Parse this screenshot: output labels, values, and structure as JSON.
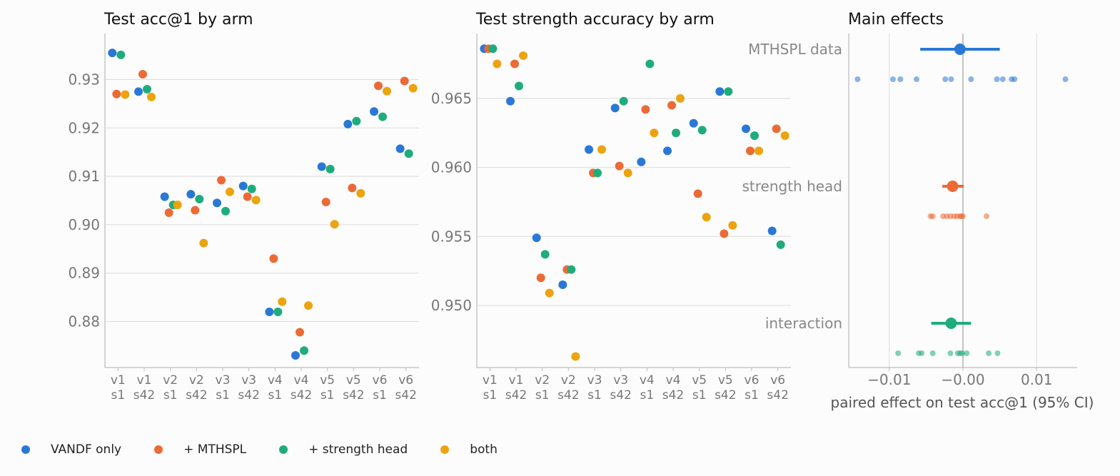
{
  "colors": {
    "VANDF only": "#2a78d6",
    "+ MTHSPL": "#ec6a35",
    "+ strength head": "#1fac7c",
    "both": "#eda30e"
  },
  "legend": [
    "VANDF only",
    "+ MTHSPL",
    "+ strength head",
    "both"
  ],
  "chart_data": [
    {
      "type": "scatter",
      "title": "Test acc@1 by arm",
      "categories": [
        "v1\ns1",
        "v1\ns42",
        "v2\ns1",
        "v2\ns42",
        "v3\ns1",
        "v3\ns42",
        "v4\ns1",
        "v4\ns42",
        "v5\ns1",
        "v5\ns42",
        "v6\ns1",
        "v6\ns42"
      ],
      "ylim": [
        0.8705,
        0.9395
      ],
      "yticks": [
        0.88,
        0.89,
        0.9,
        0.91,
        0.92,
        0.93
      ],
      "ytick_labels": [
        "0.88",
        "0.89",
        "0.90",
        "0.91",
        "0.92",
        "0.93"
      ],
      "grid": "horizontal",
      "series": [
        {
          "name": "VANDF only",
          "values": [
            0.9355,
            0.9275,
            0.9058,
            0.9063,
            0.9045,
            0.908,
            0.882,
            0.873,
            0.912,
            0.9208,
            0.9234,
            0.9157
          ]
        },
        {
          "name": "+ MTHSPL",
          "values": [
            0.927,
            0.9311,
            0.9025,
            0.903,
            0.9092,
            0.9058,
            0.893,
            0.8778,
            0.9047,
            0.9076,
            0.9287,
            0.9297
          ]
        },
        {
          "name": "+ strength head",
          "values": [
            0.9351,
            0.928,
            0.9041,
            0.9053,
            0.9028,
            0.9074,
            0.882,
            0.874,
            0.9115,
            0.9214,
            0.9223,
            0.9147
          ]
        },
        {
          "name": "both",
          "values": [
            0.9269,
            0.9264,
            0.9041,
            0.8962,
            0.9068,
            0.9051,
            0.8841,
            0.8833,
            0.9001,
            0.9065,
            0.9276,
            0.9282
          ]
        }
      ]
    },
    {
      "type": "scatter",
      "title": "Test strength accuracy by arm",
      "categories": [
        "v1\ns1",
        "v1\ns42",
        "v2\ns1",
        "v2\ns42",
        "v3\ns1",
        "v3\ns42",
        "v4\ns1",
        "v4\ns42",
        "v5\ns1",
        "v5\ns42",
        "v6\ns1",
        "v6\ns42"
      ],
      "ylim": [
        0.9455,
        0.9697
      ],
      "yticks": [
        0.95,
        0.955,
        0.96,
        0.965
      ],
      "ytick_labels": [
        "0.950",
        "0.955",
        "0.960",
        "0.965"
      ],
      "grid": "horizontal",
      "series": [
        {
          "name": "VANDF only",
          "values": [
            0.9686,
            0.9648,
            0.9549,
            0.9515,
            0.9613,
            0.9643,
            0.9604,
            0.9612,
            0.9632,
            0.9655,
            0.9628,
            0.9554
          ]
        },
        {
          "name": "+ MTHSPL",
          "values": [
            0.9686,
            0.9675,
            0.952,
            0.9526,
            0.9596,
            0.9601,
            0.9642,
            0.9645,
            0.9581,
            0.9552,
            0.9612,
            0.9628
          ]
        },
        {
          "name": "+ strength head",
          "values": [
            0.9686,
            0.9659,
            0.9537,
            0.9526,
            0.9596,
            0.9648,
            0.9675,
            0.9625,
            0.9627,
            0.9655,
            0.9623,
            0.9544
          ]
        },
        {
          "name": "both",
          "values": [
            0.9675,
            0.9681,
            0.9509,
            0.9463,
            0.9613,
            0.9596,
            0.9625,
            0.965,
            0.9564,
            0.9558,
            0.9612,
            0.9623
          ]
        }
      ]
    },
    {
      "type": "scatter",
      "title": "Main effects",
      "xlabel": "paired effect on test acc@1 (95% CI)",
      "xlim": [
        -0.0155,
        0.0155
      ],
      "xticks": [
        -0.01,
        0.0,
        0.01
      ],
      "xtick_labels": [
        "−0.01",
        "−0.00",
        "0.01"
      ],
      "effects": [
        {
          "label": "MTHSPL data",
          "color": "#2a78d6",
          "mean": -0.0004,
          "ci": [
            -0.0058,
            0.005
          ],
          "points": [
            -0.0143,
            -0.0095,
            -0.0085,
            -0.0063,
            -0.0024,
            -0.0016,
            0.0011,
            0.0046,
            0.0054,
            0.0066,
            0.007,
            0.0139
          ]
        },
        {
          "label": "strength head",
          "color": "#ec6a35",
          "mean": -0.0014,
          "ci": [
            -0.0028,
            0.0001
          ],
          "points": [
            -0.0044,
            -0.0041,
            -0.0027,
            -0.0022,
            -0.0017,
            -0.0012,
            -0.0008,
            -0.0004,
            -0.0002,
            0.0,
            0.0032
          ]
        },
        {
          "label": "interaction",
          "color": "#1fac7c",
          "mean": -0.0016,
          "ci": [
            -0.0043,
            0.0011
          ],
          "points": [
            -0.0088,
            -0.006,
            -0.0056,
            -0.0041,
            -0.0017,
            -0.0007,
            -0.0004,
            -0.0001,
            0.0005,
            0.0035,
            0.0047
          ]
        }
      ]
    }
  ]
}
